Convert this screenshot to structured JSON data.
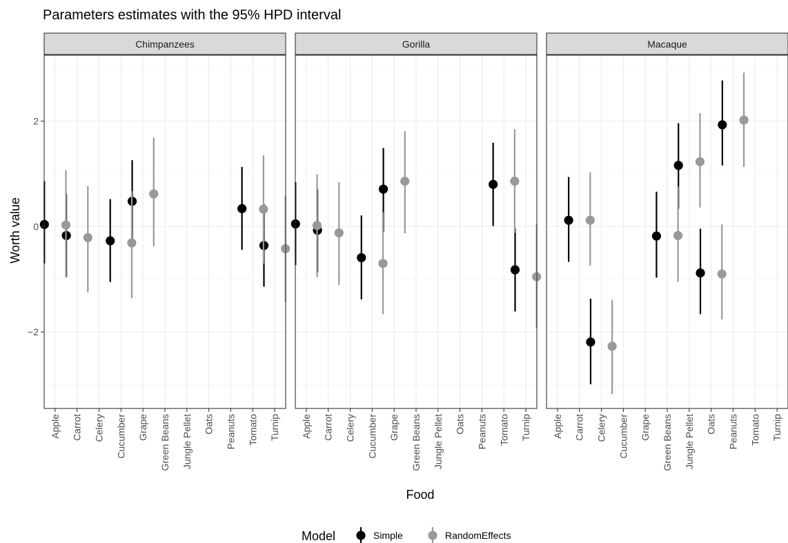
{
  "chart_data": {
    "type": "scatter",
    "title": "Parameters estimates with the 95% HPD interval",
    "xlabel": "Food",
    "ylabel": "Worth value",
    "ylim": [
      -3.45,
      3.25
    ],
    "yticks": [
      -2,
      0,
      2
    ],
    "grid": true,
    "legend_position": "bottom",
    "legend_title": "Model",
    "categories": [
      "Apple",
      "Carrot",
      "Celery",
      "Cucumber",
      "Grape",
      "Green Beans",
      "Jungle Pellet",
      "Oats",
      "Peanuts",
      "Tomato",
      "Turnip"
    ],
    "series": [
      {
        "name": "Simple",
        "color": "#000000"
      },
      {
        "name": "RandomEffects",
        "color": "#999999"
      }
    ],
    "facets": [
      {
        "name": "Chimpanzees",
        "points": [
          {
            "category": "Apple",
            "series": "Simple",
            "y": 0.04,
            "lower": -0.7,
            "upper": 0.86
          },
          {
            "category": "Apple",
            "series": "RandomEffects",
            "y": 0.03,
            "lower": -0.97,
            "upper": 1.07
          },
          {
            "category": "Carrot",
            "series": "Simple",
            "y": -0.17,
            "lower": -0.95,
            "upper": 0.62
          },
          {
            "category": "Carrot",
            "series": "RandomEffects",
            "y": -0.21,
            "lower": -1.25,
            "upper": 0.77
          },
          {
            "category": "Cucumber",
            "series": "Simple",
            "y": -0.27,
            "lower": -1.05,
            "upper": 0.52
          },
          {
            "category": "Cucumber",
            "series": "RandomEffects",
            "y": -0.31,
            "lower": -1.36,
            "upper": 0.67
          },
          {
            "category": "Grape",
            "series": "Simple",
            "y": 0.48,
            "lower": -0.3,
            "upper": 1.26
          },
          {
            "category": "Grape",
            "series": "RandomEffects",
            "y": 0.62,
            "lower": -0.37,
            "upper": 1.69
          },
          {
            "category": "Tomato",
            "series": "Simple",
            "y": 0.34,
            "lower": -0.44,
            "upper": 1.13
          },
          {
            "category": "Tomato",
            "series": "RandomEffects",
            "y": 0.33,
            "lower": -0.7,
            "upper": 1.35
          },
          {
            "category": "Turnip",
            "series": "Simple",
            "y": -0.36,
            "lower": -1.14,
            "upper": 0.43
          },
          {
            "category": "Turnip",
            "series": "RandomEffects",
            "y": -0.42,
            "lower": -1.43,
            "upper": 0.59
          }
        ]
      },
      {
        "name": "Gorilla",
        "points": [
          {
            "category": "Apple",
            "series": "Simple",
            "y": 0.05,
            "lower": -0.73,
            "upper": 0.84
          },
          {
            "category": "Apple",
            "series": "RandomEffects",
            "y": 0.02,
            "lower": -0.96,
            "upper": 0.99
          },
          {
            "category": "Carrot",
            "series": "Simple",
            "y": -0.07,
            "lower": -0.87,
            "upper": 0.71
          },
          {
            "category": "Carrot",
            "series": "RandomEffects",
            "y": -0.12,
            "lower": -1.11,
            "upper": 0.84
          },
          {
            "category": "Cucumber",
            "series": "Simple",
            "y": -0.59,
            "lower": -1.38,
            "upper": 0.21
          },
          {
            "category": "Cucumber",
            "series": "RandomEffects",
            "y": -0.7,
            "lower": -1.66,
            "upper": 0.27
          },
          {
            "category": "Grape",
            "series": "Simple",
            "y": 0.71,
            "lower": -0.1,
            "upper": 1.49
          },
          {
            "category": "Grape",
            "series": "RandomEffects",
            "y": 0.86,
            "lower": -0.13,
            "upper": 1.81
          },
          {
            "category": "Tomato",
            "series": "Simple",
            "y": 0.8,
            "lower": 0.01,
            "upper": 1.59
          },
          {
            "category": "Tomato",
            "series": "RandomEffects",
            "y": 0.86,
            "lower": -0.12,
            "upper": 1.85
          },
          {
            "category": "Turnip",
            "series": "Simple",
            "y": -0.82,
            "lower": -1.61,
            "upper": -0.03
          },
          {
            "category": "Turnip",
            "series": "RandomEffects",
            "y": -0.95,
            "lower": -1.93,
            "upper": 0.04
          }
        ]
      },
      {
        "name": "Macaque",
        "points": [
          {
            "category": "Carrot",
            "series": "Simple",
            "y": 0.12,
            "lower": -0.67,
            "upper": 0.94
          },
          {
            "category": "Carrot",
            "series": "RandomEffects",
            "y": 0.12,
            "lower": -0.74,
            "upper": 1.03
          },
          {
            "category": "Celery",
            "series": "Simple",
            "y": -2.19,
            "lower": -2.99,
            "upper": -1.37
          },
          {
            "category": "Celery",
            "series": "RandomEffects",
            "y": -2.27,
            "lower": -3.18,
            "upper": -1.39
          },
          {
            "category": "Green Beans",
            "series": "Simple",
            "y": -0.18,
            "lower": -0.97,
            "upper": 0.66
          },
          {
            "category": "Green Beans",
            "series": "RandomEffects",
            "y": -0.17,
            "lower": -1.05,
            "upper": 0.76
          },
          {
            "category": "Jungle Pellet",
            "series": "Simple",
            "y": 1.16,
            "lower": 0.34,
            "upper": 1.96
          },
          {
            "category": "Jungle Pellet",
            "series": "RandomEffects",
            "y": 1.23,
            "lower": 0.36,
            "upper": 2.15
          },
          {
            "category": "Oats",
            "series": "Simple",
            "y": -0.88,
            "lower": -1.66,
            "upper": -0.04
          },
          {
            "category": "Oats",
            "series": "RandomEffects",
            "y": -0.9,
            "lower": -1.76,
            "upper": 0.04
          },
          {
            "category": "Peanuts",
            "series": "Simple",
            "y": 1.93,
            "lower": 1.16,
            "upper": 2.77
          },
          {
            "category": "Peanuts",
            "series": "RandomEffects",
            "y": 2.02,
            "lower": 1.13,
            "upper": 2.92
          }
        ]
      }
    ]
  }
}
